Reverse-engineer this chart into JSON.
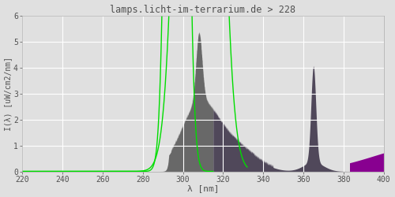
{
  "title": "lamps.licht-im-terrarium.de > 228",
  "xlabel": "λ [nm]",
  "ylabel": "I(λ) [uW/cm2/nm]",
  "xlim": [
    220,
    400
  ],
  "ylim": [
    0,
    6.0
  ],
  "yticks": [
    0.0,
    1.0,
    2.0,
    3.0,
    4.0,
    5.0,
    6.0
  ],
  "xticks": [
    220,
    240,
    260,
    280,
    300,
    320,
    340,
    360,
    380,
    400
  ],
  "bg_color": "#e0e0e0",
  "plot_bg_color": "#e0e0e0",
  "grid_color": "#ffffff",
  "title_color": "#505050",
  "axis_color": "#505050",
  "color_uvb": "#686868",
  "color_uva": "#50485a",
  "color_vis": "#880090",
  "green_line_color": "#00dd00",
  "uvb_uva_boundary": 315,
  "uva_vis_boundary": 383
}
